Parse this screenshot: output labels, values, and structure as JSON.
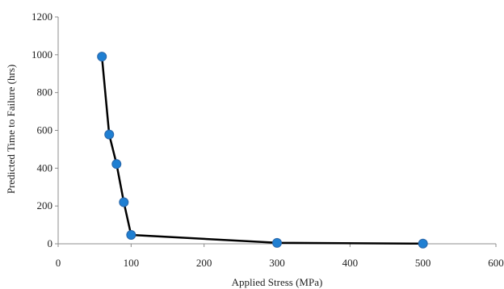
{
  "chart_data": {
    "type": "line",
    "title": "",
    "xlabel": "Applied Stress (MPa)",
    "ylabel": "Predicted Time to Failure (hrs)",
    "xlim": [
      0,
      600
    ],
    "ylim": [
      0,
      1200
    ],
    "xticks": [
      0,
      100,
      200,
      300,
      400,
      500,
      600
    ],
    "yticks": [
      0,
      200,
      400,
      600,
      800,
      1000,
      1200
    ],
    "grid": false,
    "legend": "none",
    "series": [
      {
        "x": [
          60,
          70,
          80,
          90,
          100,
          300,
          500
        ],
        "y": [
          990,
          578,
          422,
          220,
          47,
          5,
          1
        ]
      }
    ],
    "colors": {
      "line": "#000000",
      "marker_fill": "#1f7fd2",
      "marker_edge": "#2a66a8",
      "axis": "#8c8c8c"
    }
  }
}
